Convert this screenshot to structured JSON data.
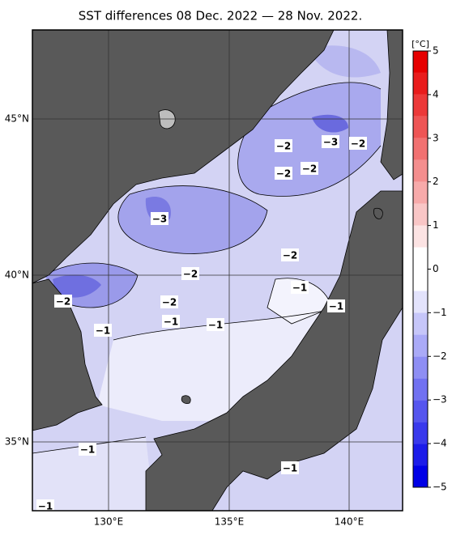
{
  "title": "SST differences 08 Dec. 2022 — 28 Nov. 2022.",
  "map": {
    "lat_labels": [
      "45°N",
      "40°N",
      "35°N"
    ],
    "lon_labels": [
      "130°E",
      "135°E",
      "140°E"
    ],
    "contour_labels": [
      "−2",
      "−3",
      "−2",
      "−2",
      "−2",
      "−3",
      "−2",
      "−2",
      "−1",
      "−2",
      "−2",
      "−1",
      "−1",
      "−1",
      "−1",
      "−1",
      "−1",
      "−1"
    ]
  },
  "colorbar": {
    "unit": "[°C]",
    "lim": [
      -5,
      5
    ],
    "ticks": [
      5,
      4,
      3,
      2,
      1,
      0,
      {
        "value": -1,
        "label": "−1"
      },
      {
        "value": -2,
        "label": "−2"
      },
      {
        "value": -3,
        "label": "−3"
      },
      {
        "value": -4,
        "label": "−4"
      },
      {
        "value": -5,
        "label": "−5"
      }
    ]
  }
}
